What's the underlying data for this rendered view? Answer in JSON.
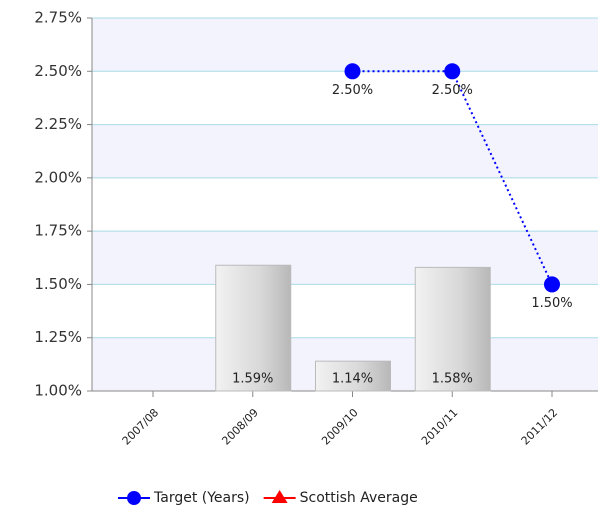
{
  "chart_data": {
    "type": "combo",
    "categories": [
      "2007/08",
      "2008/09",
      "2009/10",
      "2010/11",
      "2011/12"
    ],
    "series": [
      {
        "type": "bar",
        "color": "#d4d4d4",
        "values": [
          null,
          1.59,
          1.14,
          1.58,
          null
        ],
        "value_labels": [
          null,
          "1.59%",
          "1.14%",
          "1.58%",
          null
        ]
      },
      {
        "type": "line",
        "name": "Target (Years)",
        "color": "#0000ff",
        "values": [
          null,
          null,
          2.5,
          2.5,
          1.5
        ],
        "value_labels": [
          null,
          null,
          "2.50%",
          "2.50%",
          "1.50%"
        ]
      },
      {
        "type": "line",
        "name": "Scottish Average",
        "color": "#ff0000",
        "values": [
          null,
          null,
          null,
          null,
          null
        ]
      }
    ],
    "ylim": [
      1.0,
      2.75
    ],
    "yticks": [
      {
        "value": 1.0,
        "label": "1.00%"
      },
      {
        "value": 1.25,
        "label": "1.25%"
      },
      {
        "value": 1.5,
        "label": "1.50%"
      },
      {
        "value": 1.75,
        "label": "1.75%"
      },
      {
        "value": 2.0,
        "label": "2.00%"
      },
      {
        "value": 2.25,
        "label": "2.25%"
      },
      {
        "value": 2.5,
        "label": "2.50%"
      },
      {
        "value": 2.75,
        "label": "2.75%"
      }
    ],
    "grid": true
  }
}
